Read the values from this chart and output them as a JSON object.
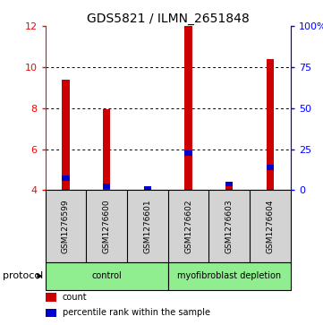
{
  "title": "GDS5821 / ILMN_2651848",
  "samples": [
    "GSM1276599",
    "GSM1276600",
    "GSM1276601",
    "GSM1276602",
    "GSM1276603",
    "GSM1276604"
  ],
  "red_values": [
    9.4,
    7.95,
    4.07,
    12.0,
    4.35,
    10.4
  ],
  "blue_values": [
    4.6,
    4.2,
    4.07,
    5.8,
    4.3,
    5.1
  ],
  "ylim_left": [
    4,
    12
  ],
  "ylim_right": [
    0,
    100
  ],
  "yticks_left": [
    4,
    6,
    8,
    10,
    12
  ],
  "yticks_right": [
    0,
    25,
    50,
    75,
    100
  ],
  "ytick_labels_right": [
    "0",
    "25",
    "50",
    "75",
    "100%"
  ],
  "bar_width": 0.18,
  "bar_color_red": "#cc0000",
  "bar_color_blue": "#0000cc",
  "protocol_label": "protocol",
  "legend_items": [
    {
      "color": "#cc0000",
      "label": "count"
    },
    {
      "color": "#0000cc",
      "label": "percentile rank within the sample"
    }
  ],
  "background_color": "#ffffff",
  "panel_bg": "#d3d3d3",
  "protocol_green": "#90ee90",
  "title_fontsize": 10,
  "tick_fontsize": 8,
  "sample_fontsize": 6.5
}
